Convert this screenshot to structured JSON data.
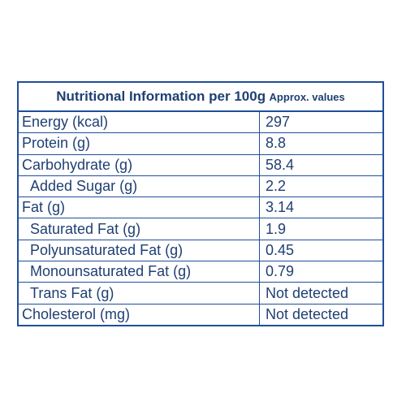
{
  "header": {
    "title": "Nutritional Information per 100g",
    "subtitle": "Approx. values"
  },
  "rows": [
    {
      "label": "Energy (kcal)",
      "value": "297"
    },
    {
      "label": "Protein (g)",
      "value": "8.8"
    },
    {
      "label": "Carbohydrate (g)",
      "value": "58.4"
    },
    {
      "label": "Added Sugar (g)",
      "value": "2.2"
    },
    {
      "label": "Fat (g)",
      "value": "3.14"
    },
    {
      "label": "Saturated Fat (g)",
      "value": "1.9"
    },
    {
      "label": "Polyunsaturated Fat (g)",
      "value": "0.45"
    },
    {
      "label": "Monounsaturated Fat (g)",
      "value": "0.79"
    },
    {
      "label": "Trans Fat (g)",
      "value": "Not detected"
    },
    {
      "label": "Cholesterol (mg)",
      "value": "Not detected"
    }
  ],
  "colors": {
    "border": "#1f4e9c",
    "text": "#1f3f73"
  }
}
